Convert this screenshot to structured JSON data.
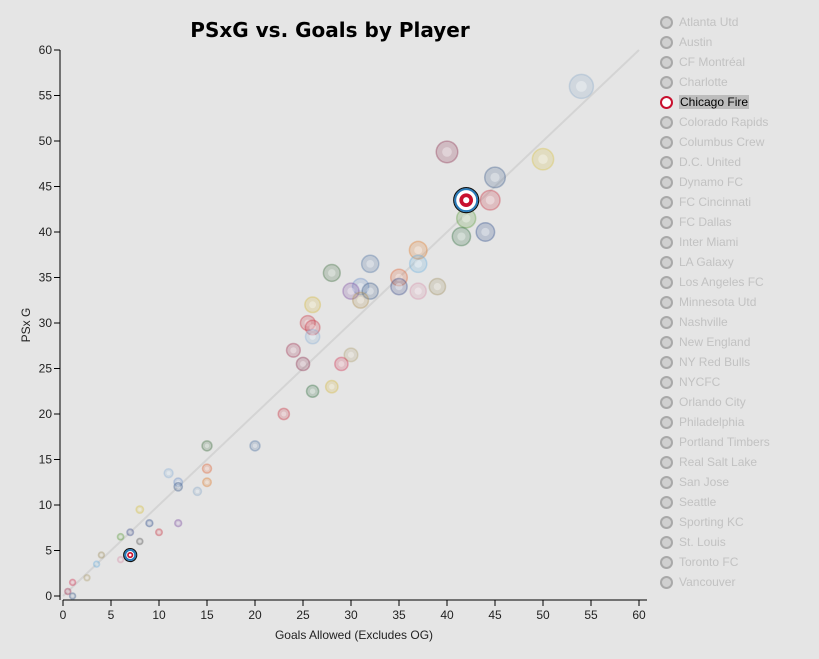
{
  "legend_teams": [
    "Atlanta Utd",
    "Austin",
    "CF Montréal",
    "Charlotte",
    "Chicago Fire",
    "Colorado Rapids",
    "Columbus Crew",
    "D.C. United",
    "Dynamo FC",
    "FC Cincinnati",
    "FC Dallas",
    "Inter Miami",
    "LA Galaxy",
    "Los Angeles FC",
    "Minnesota Utd",
    "Nashville",
    "New England",
    "NY Red Bulls",
    "NYCFC",
    "Orlando City",
    "Philadelphia",
    "Portland Timbers",
    "Real Salt Lake",
    "San Jose",
    "Seattle",
    "Sporting KC",
    "St. Louis",
    "Toronto FC",
    "Vancouver"
  ],
  "selected_team": "Chicago Fire",
  "colors": {
    "background": "#e5e5e5",
    "highlight": "#c8102e",
    "highlight_ring": "#2a7ab8",
    "fit_line": "#d4d4d4",
    "muted_text": "#c2c2c2"
  },
  "chart_data": {
    "type": "scatter",
    "title": "PSxG vs. Goals by Player",
    "xlabel": "Goals Allowed (Excludes OG)",
    "ylabel": "PSx G",
    "xlim": [
      0,
      60
    ],
    "ylim": [
      0,
      60
    ],
    "xticks": [
      0,
      5,
      10,
      15,
      20,
      25,
      30,
      35,
      40,
      45,
      50,
      55,
      60
    ],
    "yticks": [
      0,
      5,
      10,
      15,
      20,
      25,
      30,
      35,
      40,
      45,
      50,
      55,
      60
    ],
    "trend_line": {
      "x": [
        0,
        60
      ],
      "y": [
        0,
        60
      ]
    },
    "highlighted": [
      {
        "team": "Chicago Fire",
        "x": 42,
        "y": 43.5
      },
      {
        "team": "Chicago Fire",
        "x": 7,
        "y": 4.5
      }
    ],
    "points": [
      {
        "team": "Minnesota Utd",
        "x": 54,
        "y": 56
      },
      {
        "team": "Colorado Rapids",
        "x": 40,
        "y": 48.8
      },
      {
        "team": "Nashville",
        "x": 50,
        "y": 48
      },
      {
        "team": "Vancouver",
        "x": 45,
        "y": 46
      },
      {
        "team": "Toronto FC",
        "x": 44.5,
        "y": 43.5
      },
      {
        "team": "Seattle",
        "x": 42,
        "y": 41.5
      },
      {
        "team": "LA Galaxy",
        "x": 44,
        "y": 40
      },
      {
        "team": "Portland Timbers",
        "x": 41.5,
        "y": 39.5
      },
      {
        "team": "Dynamo FC",
        "x": 37,
        "y": 38
      },
      {
        "team": "NYCFC",
        "x": 37,
        "y": 36.5
      },
      {
        "team": "CF Montréal",
        "x": 32,
        "y": 36.5
      },
      {
        "team": "Austin",
        "x": 28,
        "y": 35.5
      },
      {
        "team": "FC Cincinnati",
        "x": 35,
        "y": 35
      },
      {
        "team": "New England",
        "x": 35,
        "y": 34
      },
      {
        "team": "Atlanta Utd",
        "x": 39,
        "y": 34
      },
      {
        "team": "Inter Miami",
        "x": 37,
        "y": 33.5
      },
      {
        "team": "Charlotte",
        "x": 31,
        "y": 34
      },
      {
        "team": "Orlando City",
        "x": 30,
        "y": 33.5
      },
      {
        "team": "San Jose",
        "x": 32,
        "y": 33.5
      },
      {
        "team": "Los Angeles FC",
        "x": 31,
        "y": 32.5
      },
      {
        "team": "Columbus Crew",
        "x": 26,
        "y": 32
      },
      {
        "team": "FC Dallas",
        "x": 25.5,
        "y": 30
      },
      {
        "team": "NY Red Bulls",
        "x": 26,
        "y": 29.5
      },
      {
        "team": "Sporting KC",
        "x": 26,
        "y": 28.5
      },
      {
        "team": "Real Salt Lake",
        "x": 24,
        "y": 27
      },
      {
        "team": "Philadelphia",
        "x": 30,
        "y": 26.5
      },
      {
        "team": "St. Louis",
        "x": 29,
        "y": 25.5
      },
      {
        "team": "Colorado Rapids",
        "x": 25,
        "y": 25.5
      },
      {
        "team": "Portland Timbers",
        "x": 26,
        "y": 22.5
      },
      {
        "team": "Columbus Crew",
        "x": 28,
        "y": 23
      },
      {
        "team": "Toronto FC",
        "x": 23,
        "y": 20
      },
      {
        "team": "Austin",
        "x": 15,
        "y": 16.5
      },
      {
        "team": "CF Montréal",
        "x": 20,
        "y": 16.5
      },
      {
        "team": "FC Cincinnati",
        "x": 15,
        "y": 14
      },
      {
        "team": "Sporting KC",
        "x": 11,
        "y": 13.5
      },
      {
        "team": "Charlotte",
        "x": 12,
        "y": 12.5
      },
      {
        "team": "Dynamo FC",
        "x": 15,
        "y": 12.5
      },
      {
        "team": "Vancouver",
        "x": 12,
        "y": 12
      },
      {
        "team": "Minnesota Utd",
        "x": 14,
        "y": 11.5
      },
      {
        "team": "Nashville",
        "x": 8,
        "y": 9.5
      },
      {
        "team": "Orlando City",
        "x": 12,
        "y": 8
      },
      {
        "team": "LA Galaxy",
        "x": 9,
        "y": 8
      },
      {
        "team": "New England",
        "x": 7,
        "y": 7
      },
      {
        "team": "Seattle",
        "x": 6,
        "y": 6.5
      },
      {
        "team": "NY Red Bulls",
        "x": 10,
        "y": 7
      },
      {
        "team": "D.C. United",
        "x": 8,
        "y": 6
      },
      {
        "team": "Inter Miami",
        "x": 6,
        "y": 4
      },
      {
        "team": "Atlanta Utd",
        "x": 4,
        "y": 4.5
      },
      {
        "team": "NYCFC",
        "x": 3.5,
        "y": 3.5
      },
      {
        "team": "Philadelphia",
        "x": 2.5,
        "y": 2
      },
      {
        "team": "St. Louis",
        "x": 1,
        "y": 1.5
      },
      {
        "team": "Real Salt Lake",
        "x": 0.5,
        "y": 0.5
      },
      {
        "team": "San Jose",
        "x": 1,
        "y": 0
      }
    ]
  }
}
